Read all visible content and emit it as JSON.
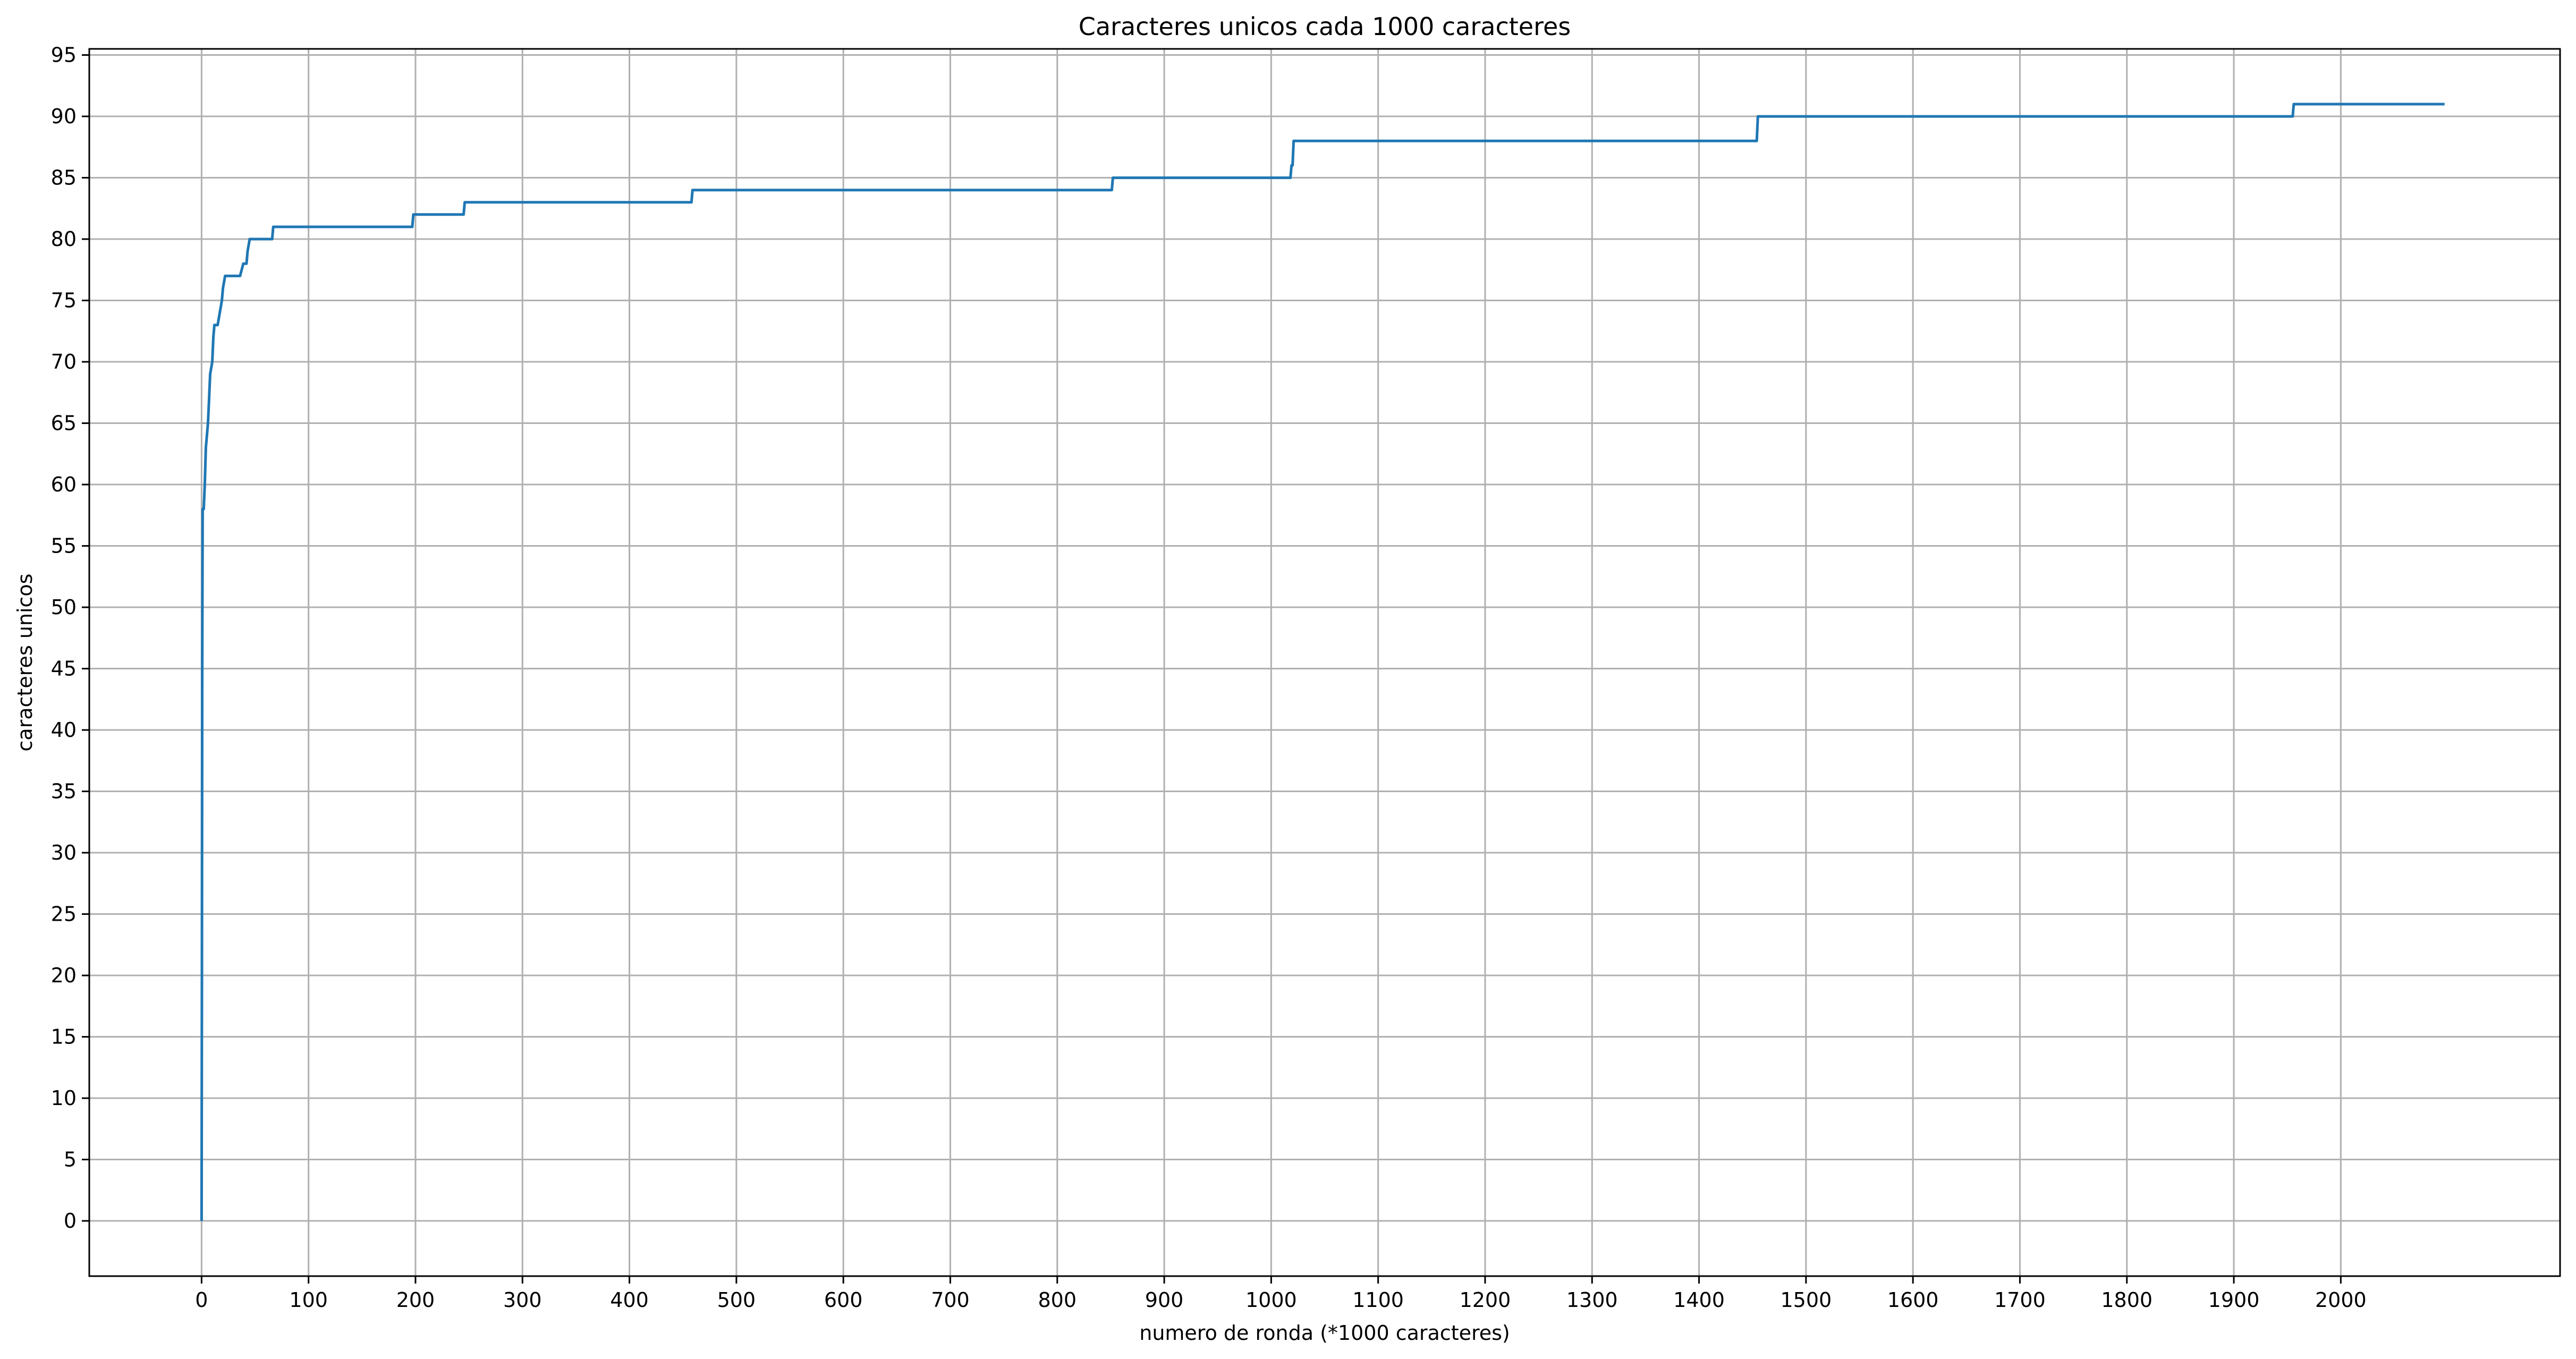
{
  "chart_data": {
    "type": "line",
    "title": "Caracteres unicos cada 1000 caracteres",
    "xlabel": "numero de ronda (*1000 caracteres)",
    "ylabel": "caracteres unicos",
    "xlim": [
      -105,
      2205
    ],
    "ylim": [
      -4.5,
      95.5
    ],
    "xticks": [
      0,
      100,
      200,
      300,
      400,
      500,
      600,
      700,
      800,
      900,
      1000,
      1100,
      1200,
      1300,
      1400,
      1500,
      1600,
      1700,
      1800,
      1900,
      2000
    ],
    "yticks": [
      0,
      5,
      10,
      15,
      20,
      25,
      30,
      35,
      40,
      45,
      50,
      55,
      60,
      65,
      70,
      75,
      80,
      85,
      90,
      95
    ],
    "grid": true,
    "line_color": "#1f77b4",
    "series": [
      {
        "x": [
          0,
          0.3,
          0.6,
          1,
          2,
          3,
          4,
          5,
          6,
          7,
          8,
          10,
          11,
          12,
          15,
          19,
          20,
          22,
          24,
          36,
          39,
          42,
          43,
          45,
          46,
          66,
          67,
          197,
          198,
          245,
          246,
          458,
          459,
          851,
          852,
          1018,
          1019,
          1020,
          1021,
          1454,
          1455,
          1955,
          1956,
          2097
        ],
        "y": [
          0,
          20,
          45,
          58,
          58,
          60,
          63,
          64,
          65,
          67,
          69,
          70,
          72,
          73,
          73,
          75,
          76,
          77,
          77,
          77,
          78,
          78,
          79,
          80,
          80,
          80,
          81,
          81,
          82,
          82,
          83,
          83,
          84,
          84,
          85,
          85,
          86,
          86,
          88,
          88,
          90,
          90,
          91,
          91
        ]
      }
    ]
  }
}
